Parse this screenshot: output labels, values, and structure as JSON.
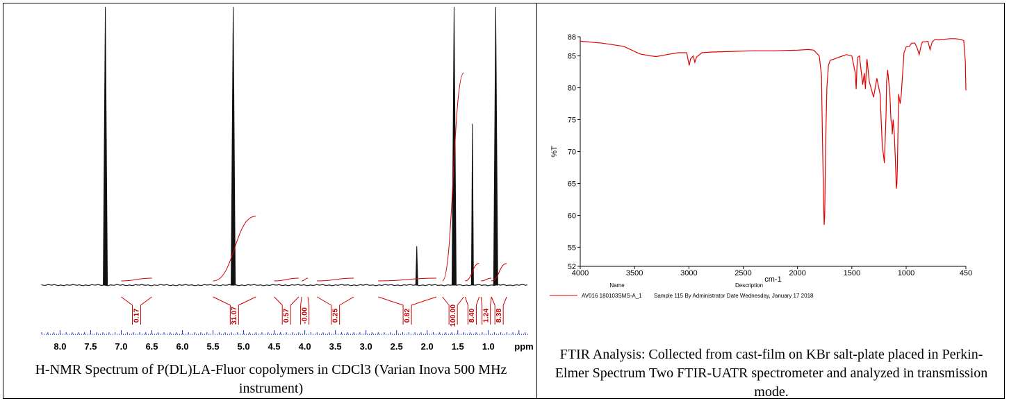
{
  "panels": {
    "nmr": {
      "caption": "H-NMR Spectrum of P(DL)LA-Fluor copolymers in CDCl3 (Varian Inova 500 MHz instrument)",
      "chart_data": {
        "type": "line",
        "xlabel": "ppm",
        "x_reversed": true,
        "xlim": [
          8.3,
          0.35
        ],
        "ticks": [
          "8.0",
          "7.5",
          "7.0",
          "6.5",
          "6.0",
          "5.5",
          "5.0",
          "4.5",
          "4.0",
          "3.5",
          "3.0",
          "2.5",
          "2.0",
          "1.5",
          "1.0",
          "ppm"
        ],
        "tick_values": [
          8.0,
          7.5,
          7.0,
          6.5,
          6.0,
          5.5,
          5.0,
          4.5,
          4.0,
          3.5,
          3.0,
          2.5,
          2.0,
          1.5,
          1.0
        ],
        "peaks": [
          {
            "ppm": 7.26,
            "height": 1.0
          },
          {
            "ppm": 5.17,
            "height": 1.0
          },
          {
            "ppm": 2.17,
            "height": 0.14
          },
          {
            "ppm": 1.56,
            "height": 1.0
          },
          {
            "ppm": 1.26,
            "height": 0.58
          },
          {
            "ppm": 0.88,
            "height": 1.0
          }
        ],
        "integrals": [
          {
            "from": 7.0,
            "to": 6.5,
            "value": "0.17"
          },
          {
            "from": 5.5,
            "to": 4.8,
            "value": "31.07"
          },
          {
            "from": 4.5,
            "to": 4.1,
            "value": "0.57"
          },
          {
            "from": 4.05,
            "to": 3.95,
            "value": "-0.00"
          },
          {
            "from": 3.8,
            "to": 3.2,
            "value": "0.25"
          },
          {
            "from": 2.8,
            "to": 1.85,
            "value": "0.82"
          },
          {
            "from": 1.75,
            "to": 1.4,
            "value": "100.00"
          },
          {
            "from": 1.38,
            "to": 1.15,
            "value": "8.40"
          },
          {
            "from": 1.12,
            "to": 0.95,
            "value": "1.24"
          },
          {
            "from": 0.95,
            "to": 0.7,
            "value": "8.38"
          }
        ]
      }
    },
    "ftir": {
      "caption": "FTIR Analysis: Collected from cast-film on KBr salt-plate placed in Perkin-Elmer Spectrum Two FTIR-UATR spectrometer and analyzed in transmission mode.",
      "chart_data": {
        "type": "line",
        "xlabel": "cm-1",
        "ylabel": "%T",
        "xlim": [
          4000,
          450
        ],
        "ylim": [
          52,
          88
        ],
        "x_ticks": [
          4000,
          3500,
          3000,
          2500,
          2000,
          1500,
          1000,
          450
        ],
        "y_ticks": [
          52,
          55,
          60,
          65,
          70,
          75,
          80,
          85,
          88
        ],
        "series": [
          {
            "name": "AV016 180103SMS-A_1",
            "color": "#e00000",
            "x": [
              4000,
              3800,
              3600,
              3450,
              3350,
              3300,
              3200,
              3100,
              3020,
              2997,
              2985,
              2960,
              2945,
              2930,
              2880,
              2800,
              2600,
              2400,
              2200,
              2000,
              1900,
              1850,
              1800,
              1780,
              1770,
              1760,
              1755,
              1750,
              1740,
              1730,
              1715,
              1700,
              1650,
              1600,
              1550,
              1500,
              1470,
              1460,
              1452,
              1445,
              1430,
              1400,
              1385,
              1375,
              1365,
              1360,
              1340,
              1300,
              1270,
              1240,
              1220,
              1200,
              1185,
              1180,
              1170,
              1150,
              1140,
              1130,
              1128,
              1120,
              1110,
              1100,
              1090,
              1085,
              1080,
              1070,
              1055,
              1045,
              1020,
              1000,
              970,
              950,
              920,
              900,
              880,
              860,
              850,
              830,
              800,
              780,
              760,
              740,
              720,
              700,
              680,
              650,
              600,
              550,
              500,
              470,
              455,
              450
            ],
            "y": [
              87.3,
              87.0,
              86.5,
              85.3,
              85.0,
              84.9,
              85.2,
              85.5,
              85.5,
              83.5,
              84.5,
              85.0,
              84.0,
              84.8,
              85.5,
              85.6,
              85.7,
              85.8,
              85.8,
              85.9,
              86.0,
              85.9,
              85.0,
              82.0,
              72.0,
              62.0,
              58.5,
              60.0,
              72.0,
              80.0,
              83.5,
              84.3,
              84.6,
              84.9,
              85.2,
              85.0,
              82.5,
              79.8,
              83.5,
              84.8,
              85.0,
              80.5,
              82.3,
              79.8,
              83.8,
              84.5,
              81.0,
              78.5,
              81.5,
              79.0,
              71.0,
              68.2,
              76.0,
              81.0,
              82.8,
              79.0,
              75.0,
              74.0,
              72.7,
              75.0,
              73.0,
              69.0,
              64.2,
              65.0,
              68.0,
              79.0,
              77.5,
              79.0,
              85.5,
              86.4,
              86.5,
              87.0,
              87.0,
              86.3,
              85.2,
              86.8,
              87.2,
              87.2,
              87.3,
              86.0,
              87.2,
              87.5,
              87.6,
              87.5,
              87.6,
              87.6,
              87.7,
              87.7,
              87.6,
              87.4,
              84.0,
              79.6
            ]
          }
        ]
      },
      "legend": {
        "name_header": "Name",
        "description_header": "Description",
        "entry_name": "AV016 180103SMS-A_1",
        "entry_description": "Sample 115 By Administrator Date Wednesday, January 17 2018"
      }
    }
  }
}
